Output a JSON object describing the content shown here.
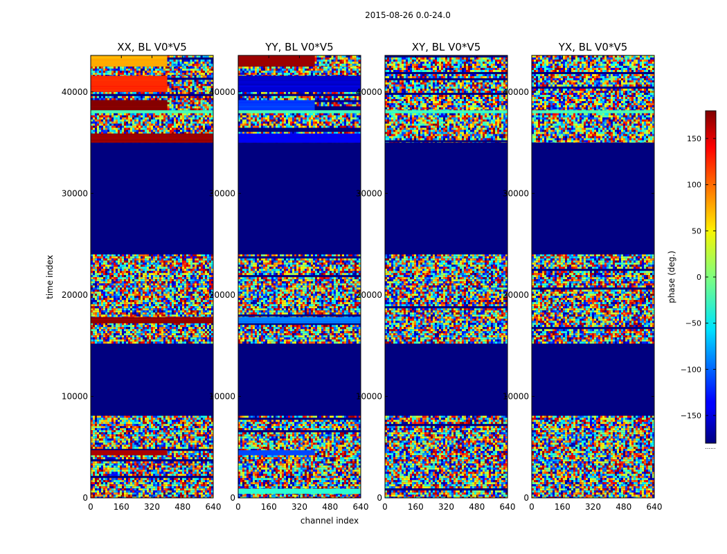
{
  "chart_data": {
    "type": "heatmap",
    "suptitle": "2015-08-26 0.0-24.0",
    "xlabel": "channel index",
    "ylabel": "time index",
    "xlim": [
      0,
      640
    ],
    "ylim": [
      0,
      43600
    ],
    "xticks": [
      0,
      160,
      320,
      480,
      640
    ],
    "xtick_labels": [
      "0",
      "160",
      "320",
      "480",
      "640"
    ],
    "yticks": [
      0,
      10000,
      20000,
      30000,
      40000
    ],
    "ytick_labels": [
      "0",
      "10000",
      "20000",
      "30000",
      "40000"
    ],
    "colorbar": {
      "label": "phase (deg.)",
      "colormap": "jet",
      "range": [
        -180,
        180
      ],
      "ticks": [
        150,
        100,
        50,
        0,
        -50,
        -100,
        -150
      ],
      "tick_labels": [
        "150",
        "100",
        "50",
        "0",
        "−50",
        "−100",
        "−150"
      ],
      "extra_label": "......"
    },
    "panels": [
      {
        "title": "XX, BL V0*V5",
        "bands": [
          {
            "t0": 0,
            "t1": 8100,
            "kind": "noise"
          },
          {
            "t0": 4200,
            "t1": 4700,
            "kind": "solid",
            "value": 165,
            "c0": 0,
            "c1": 400
          },
          {
            "t0": 8100,
            "t1": 15200,
            "kind": "flag"
          },
          {
            "t0": 15200,
            "t1": 24000,
            "kind": "noise"
          },
          {
            "t0": 17200,
            "t1": 17800,
            "kind": "solid",
            "value": 175
          },
          {
            "t0": 24000,
            "t1": 35000,
            "kind": "flag"
          },
          {
            "t0": 35000,
            "t1": 37900,
            "kind": "noise"
          },
          {
            "t0": 35000,
            "t1": 35900,
            "kind": "solid",
            "value": 170
          },
          {
            "t0": 37900,
            "t1": 38200,
            "kind": "solid",
            "value": -20
          },
          {
            "t0": 38200,
            "t1": 39200,
            "kind": "solid",
            "value": 178,
            "c0": 0,
            "c1": 400
          },
          {
            "t0": 38200,
            "t1": 39200,
            "kind": "noise",
            "c0": 400,
            "c1": 640
          },
          {
            "t0": 39200,
            "t1": 40000,
            "kind": "noise"
          },
          {
            "t0": 40000,
            "t1": 41600,
            "kind": "solid",
            "value": 120,
            "c0": 0,
            "c1": 400
          },
          {
            "t0": 40000,
            "t1": 41600,
            "kind": "noise",
            "c0": 400,
            "c1": 640
          },
          {
            "t0": 41600,
            "t1": 42500,
            "kind": "noise"
          },
          {
            "t0": 42500,
            "t1": 43600,
            "kind": "solid",
            "value": 75,
            "c0": 0,
            "c1": 400
          },
          {
            "t0": 42500,
            "t1": 43600,
            "kind": "noise",
            "c0": 400,
            "c1": 640
          }
        ]
      },
      {
        "title": "YY, BL V0*V5",
        "bands": [
          {
            "t0": 0,
            "t1": 8100,
            "kind": "noise"
          },
          {
            "t0": 400,
            "t1": 900,
            "kind": "solid",
            "value": -30
          },
          {
            "t0": 4200,
            "t1": 4700,
            "kind": "solid",
            "value": -110,
            "c0": 0,
            "c1": 400
          },
          {
            "t0": 8100,
            "t1": 15200,
            "kind": "flag"
          },
          {
            "t0": 15200,
            "t1": 24000,
            "kind": "noise"
          },
          {
            "t0": 17200,
            "t1": 17800,
            "kind": "solid",
            "value": -90
          },
          {
            "t0": 24000,
            "t1": 35000,
            "kind": "flag"
          },
          {
            "t0": 35000,
            "t1": 37900,
            "kind": "noise"
          },
          {
            "t0": 35000,
            "t1": 35900,
            "kind": "solid",
            "value": -140
          },
          {
            "t0": 37900,
            "t1": 38200,
            "kind": "solid",
            "value": -20
          },
          {
            "t0": 38200,
            "t1": 39200,
            "kind": "solid",
            "value": -115,
            "c0": 0,
            "c1": 400
          },
          {
            "t0": 38200,
            "t1": 39200,
            "kind": "noise",
            "c0": 400,
            "c1": 640
          },
          {
            "t0": 39200,
            "t1": 40000,
            "kind": "noise"
          },
          {
            "t0": 40000,
            "t1": 41600,
            "kind": "solid",
            "value": -150
          },
          {
            "t0": 41600,
            "t1": 42500,
            "kind": "noise"
          },
          {
            "t0": 42500,
            "t1": 43600,
            "kind": "solid",
            "value": 170,
            "c0": 0,
            "c1": 400
          },
          {
            "t0": 42500,
            "t1": 43600,
            "kind": "noise",
            "c0": 400,
            "c1": 640
          }
        ]
      },
      {
        "title": "XY, BL V0*V5",
        "bands": [
          {
            "t0": 0,
            "t1": 8100,
            "kind": "noise"
          },
          {
            "t0": 8100,
            "t1": 15200,
            "kind": "flag"
          },
          {
            "t0": 15200,
            "t1": 24000,
            "kind": "noise"
          },
          {
            "t0": 24000,
            "t1": 35000,
            "kind": "flag"
          },
          {
            "t0": 35000,
            "t1": 37900,
            "kind": "noise"
          },
          {
            "t0": 37900,
            "t1": 38200,
            "kind": "solid",
            "value": -20
          },
          {
            "t0": 38200,
            "t1": 43600,
            "kind": "noise"
          }
        ]
      },
      {
        "title": "YX, BL V0*V5",
        "bands": [
          {
            "t0": 0,
            "t1": 8100,
            "kind": "noise"
          },
          {
            "t0": 8100,
            "t1": 15200,
            "kind": "flag"
          },
          {
            "t0": 15200,
            "t1": 24000,
            "kind": "noise"
          },
          {
            "t0": 24000,
            "t1": 35000,
            "kind": "flag"
          },
          {
            "t0": 35000,
            "t1": 37900,
            "kind": "noise"
          },
          {
            "t0": 37900,
            "t1": 38200,
            "kind": "solid",
            "value": -20
          },
          {
            "t0": 38200,
            "t1": 43600,
            "kind": "noise"
          }
        ]
      }
    ]
  },
  "colors": {
    "flag": "#00007f",
    "frame": "#000000",
    "background": "#ffffff"
  }
}
